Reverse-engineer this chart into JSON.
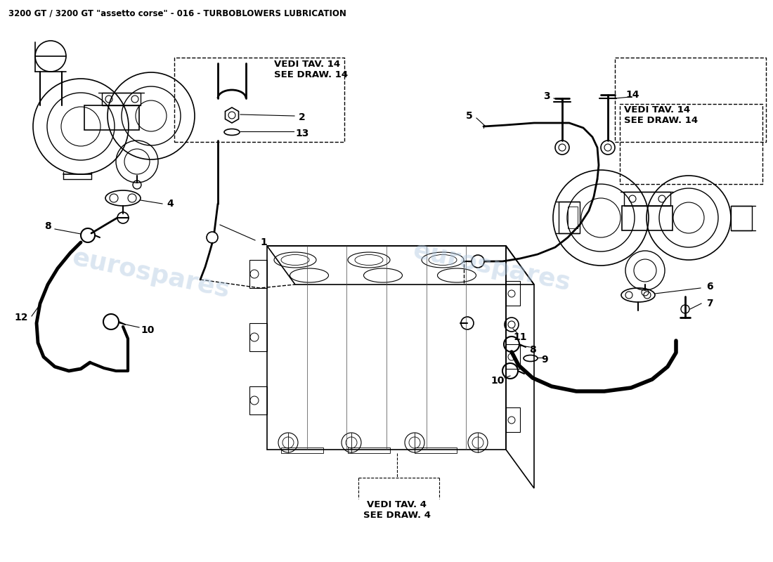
{
  "title": "3200 GT / 3200 GT \"assetto corse\" - 016 - TURBOBLOWERS LUBRICATION",
  "title_fontsize": 8.5,
  "title_color": "#000000",
  "background_color": "#ffffff",
  "watermark_text": "eurospares",
  "watermark_color": "#b0c8e0",
  "watermark_alpha": 0.45,
  "line_color": "#000000",
  "line_width": 1.2,
  "vedi14_left_text": "VEDI TAV. 14\nSEE DRAW. 14",
  "vedi14_right_text": "VEDI TAV. 14\nSEE DRAW. 14",
  "vedi4_text": "VEDI TAV. 4\nSEE DRAW. 4",
  "label_fontsize": 10
}
